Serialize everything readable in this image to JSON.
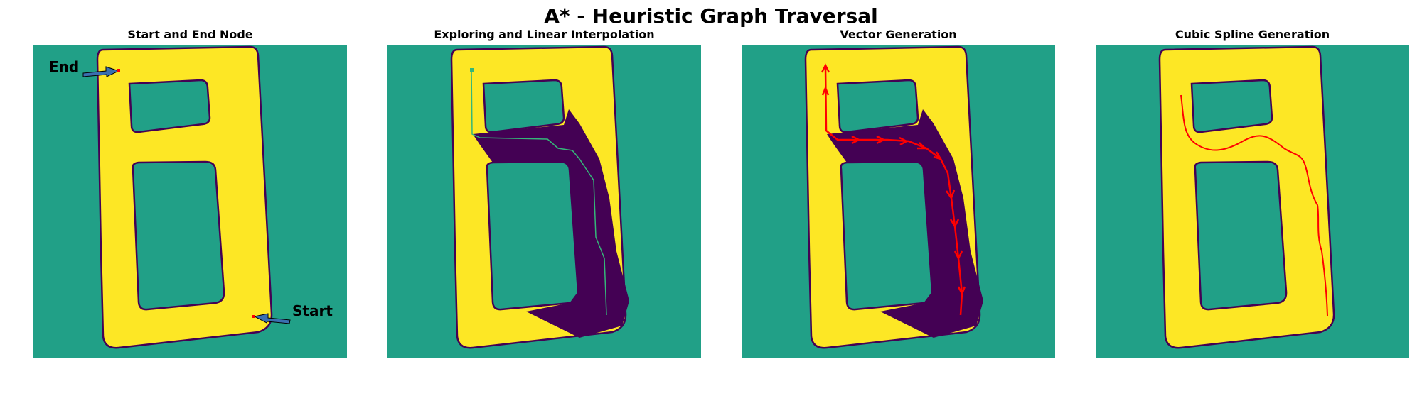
{
  "figure": {
    "title": "A* - Heuristic Graph Traversal"
  },
  "panels": [
    {
      "title": "Start and End Node"
    },
    {
      "title": "Exploring and Linear Interpolation"
    },
    {
      "title": "Vector Generation"
    },
    {
      "title": "Cubic Spline Generation"
    }
  ],
  "annotations": {
    "end_label": "End",
    "start_label": "Start"
  },
  "colors": {
    "free_space": "#21a087",
    "track": "#fde725",
    "explored": "#440154",
    "path_line": "#35b779",
    "vectors": "#ff0000",
    "spline": "#ff0000",
    "arrow_fill": "#3a6fb0"
  }
}
